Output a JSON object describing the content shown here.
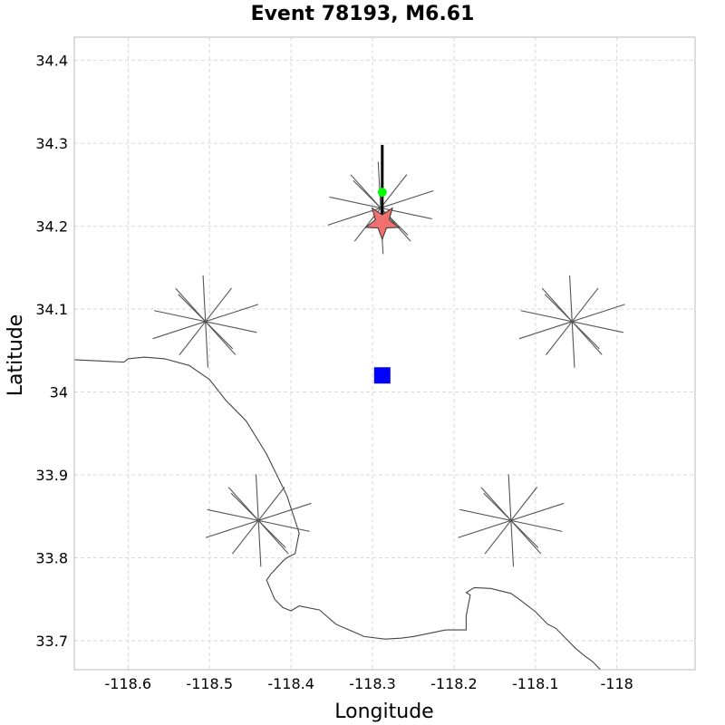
{
  "title": "Event 78193, M6.61",
  "chart_data": {
    "type": "scatter",
    "title": "Event 78193, M6.61",
    "xlabel": "Longitude",
    "ylabel": "Latitude",
    "xlim": [
      -118.666,
      -117.904
    ],
    "ylim": [
      33.665,
      34.428
    ],
    "xticks": [
      -118.6,
      -118.5,
      -118.4,
      -118.3,
      -118.2,
      -118.1,
      -118.0
    ],
    "xtick_labels": [
      "-118.6",
      "-118.5",
      "-118.4",
      "-118.3",
      "-118.2",
      "-118.1",
      "-118"
    ],
    "yticks": [
      33.7,
      33.8,
      33.9,
      34.0,
      34.1,
      34.2,
      34.3,
      34.4
    ],
    "ytick_labels": [
      "33.7",
      "33.8",
      "33.9",
      "34",
      "34.1",
      "34.2",
      "34.3",
      "34.4"
    ],
    "grid": true,
    "epicenter": {
      "lon": -118.288,
      "lat": 34.205,
      "color": "#f07070",
      "marker": "star"
    },
    "hypocenter_marker": {
      "lon": -118.288,
      "lat": 34.241,
      "color": "#00ff00",
      "marker": "circle"
    },
    "center_marker": {
      "lon": -118.288,
      "lat": 34.02,
      "color": "#0000ff",
      "marker": "square"
    },
    "rupture_trace": [
      {
        "lon": -118.288,
        "lat": 34.298
      },
      {
        "lon": -118.288,
        "lat": 34.2
      }
    ],
    "stations": [
      {
        "lon": -118.29,
        "lat": 34.222
      },
      {
        "lon": -118.505,
        "lat": 34.085
      },
      {
        "lon": -118.055,
        "lat": 34.085
      },
      {
        "lon": -118.44,
        "lat": 33.845
      },
      {
        "lon": -118.13,
        "lat": 33.845
      }
    ],
    "coastline": [
      [
        -118.666,
        34.039
      ],
      [
        -118.605,
        34.036
      ],
      [
        -118.6,
        34.04
      ],
      [
        -118.58,
        34.042
      ],
      [
        -118.555,
        34.04
      ],
      [
        -118.525,
        34.032
      ],
      [
        -118.5,
        34.015
      ],
      [
        -118.48,
        33.99
      ],
      [
        -118.455,
        33.965
      ],
      [
        -118.43,
        33.925
      ],
      [
        -118.405,
        33.875
      ],
      [
        -118.39,
        33.83
      ],
      [
        -118.395,
        33.805
      ],
      [
        -118.405,
        33.8
      ],
      [
        -118.41,
        33.796
      ],
      [
        -118.425,
        33.78
      ],
      [
        -118.43,
        33.773
      ],
      [
        -118.42,
        33.75
      ],
      [
        -118.41,
        33.74
      ],
      [
        -118.4,
        33.736
      ],
      [
        -118.39,
        33.742
      ],
      [
        -118.365,
        33.737
      ],
      [
        -118.345,
        33.72
      ],
      [
        -118.31,
        33.705
      ],
      [
        -118.285,
        33.702
      ],
      [
        -118.265,
        33.703
      ],
      [
        -118.25,
        33.705
      ],
      [
        -118.21,
        33.713
      ],
      [
        -118.185,
        33.713
      ],
      [
        -118.185,
        33.73
      ],
      [
        -118.18,
        33.755
      ],
      [
        -118.185,
        33.758
      ],
      [
        -118.175,
        33.764
      ],
      [
        -118.155,
        33.763
      ],
      [
        -118.13,
        33.757
      ],
      [
        -118.12,
        33.75
      ],
      [
        -118.1,
        33.735
      ],
      [
        -118.085,
        33.72
      ],
      [
        -118.075,
        33.715
      ],
      [
        -118.06,
        33.7
      ],
      [
        -118.05,
        33.69
      ],
      [
        -118.04,
        33.682
      ],
      [
        -118.03,
        33.675
      ],
      [
        -118.02,
        33.665
      ]
    ]
  }
}
